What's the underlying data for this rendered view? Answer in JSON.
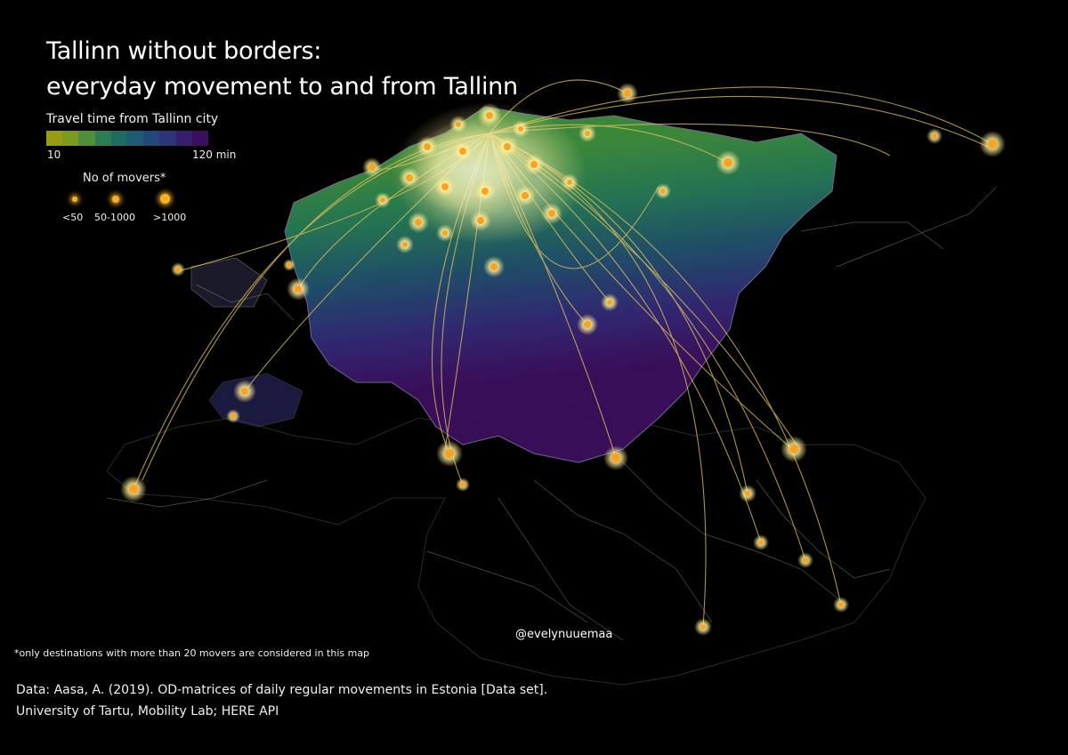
{
  "title": {
    "line1": "Tallinn without borders:",
    "line2": "everyday movement to and from Tallinn"
  },
  "legend": {
    "travel_time_title": "Travel time from Tallinn city",
    "travel_time_min": "10",
    "travel_time_max": "120 min",
    "travel_time_colors": [
      "#9a9a14",
      "#7a9a22",
      "#4f8f3a",
      "#2e7d52",
      "#1f6b62",
      "#1e5a70",
      "#24477a",
      "#2c357a",
      "#351f6e",
      "#3d0e5c"
    ],
    "movers_title": "No of movers*",
    "movers_small": "<50",
    "movers_mid": "50-1000",
    "movers_large": ">1000"
  },
  "credit": "@evelynuuemaa",
  "footnote": "*only destinations with more than 20 movers are considered in this map",
  "source": {
    "line1": "Data:  Aasa, A. (2019). OD-matrices of daily regular movements in Estonia [Data set].",
    "line2": "University of Tartu, Mobility Lab; HERE API"
  },
  "colors": {
    "background": "#000000",
    "flow_line": "#e8c45a",
    "hub_glow": "#fff6b0",
    "dot": "#ffa21a",
    "road": "#9a9a9a"
  }
}
